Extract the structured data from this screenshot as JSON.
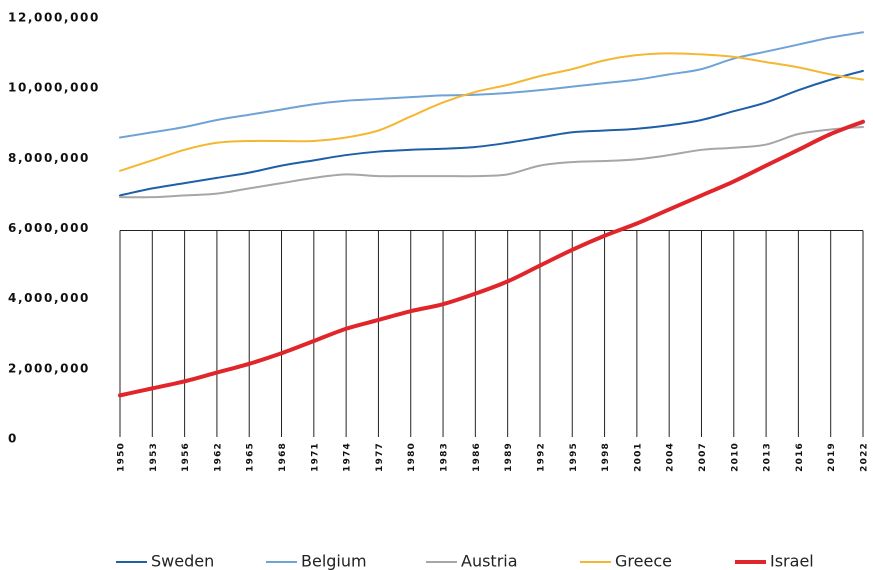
{
  "chart_data": {
    "type": "line",
    "categories": [
      "1950",
      "1953",
      "1956",
      "1962",
      "1965",
      "1968",
      "1971",
      "1974",
      "1977",
      "1980",
      "1983",
      "1986",
      "1989",
      "1992",
      "1995",
      "1998",
      "2001",
      "2004",
      "2007",
      "2010",
      "2013",
      "2016",
      "2019",
      "2022"
    ],
    "ylim": [
      0,
      12000000
    ],
    "yticks": [
      0,
      {
        "value": 2000000,
        "label": "2,000,000"
      },
      {
        "value": 4000000,
        "label": "4,000,000"
      },
      {
        "value": 6000000,
        "label": "6,000,000"
      },
      {
        "value": 8000000,
        "label": "8,000,000"
      },
      {
        "value": 10000000,
        "label": "10,000,000"
      },
      {
        "value": 12000000,
        "label": "12,000,000"
      }
    ],
    "legend": "bottom",
    "series": [
      {
        "name": "Sweden",
        "color": "#1f5fa8",
        "width": 2,
        "values": [
          7000000,
          7200000,
          7350000,
          7500000,
          7650000,
          7850000,
          8000000,
          8150000,
          8250000,
          8300000,
          8330000,
          8380000,
          8500000,
          8650000,
          8800000,
          8850000,
          8900000,
          9000000,
          9150000,
          9400000,
          9650000,
          10000000,
          10300000,
          10550000
        ]
      },
      {
        "name": "Belgium",
        "color": "#6fa3d8",
        "width": 2,
        "values": [
          8650000,
          8800000,
          8950000,
          9150000,
          9300000,
          9450000,
          9600000,
          9700000,
          9750000,
          9800000,
          9850000,
          9870000,
          9920000,
          10000000,
          10100000,
          10200000,
          10300000,
          10450000,
          10600000,
          10900000,
          11100000,
          11300000,
          11500000,
          11650000
        ]
      },
      {
        "name": "Austria",
        "color": "#a6a6a6",
        "width": 2,
        "values": [
          6950000,
          6950000,
          7000000,
          7050000,
          7200000,
          7350000,
          7500000,
          7600000,
          7550000,
          7550000,
          7550000,
          7550000,
          7600000,
          7850000,
          7950000,
          7980000,
          8030000,
          8150000,
          8300000,
          8360000,
          8450000,
          8750000,
          8880000,
          8950000
        ]
      },
      {
        "name": "Greece",
        "color": "#f5b731",
        "width": 2,
        "values": [
          7700000,
          8000000,
          8300000,
          8500000,
          8550000,
          8550000,
          8550000,
          8650000,
          8850000,
          9250000,
          9650000,
          9950000,
          10150000,
          10400000,
          10600000,
          10850000,
          11000000,
          11050000,
          11020000,
          10950000,
          10800000,
          10650000,
          10450000,
          10300000
        ]
      },
      {
        "name": "Israel",
        "color": "#e0262b",
        "width": 4,
        "values": [
          1300000,
          1500000,
          1700000,
          1950000,
          2200000,
          2500000,
          2850000,
          3200000,
          3450000,
          3700000,
          3900000,
          4200000,
          4550000,
          5000000,
          5450000,
          5850000,
          6200000,
          6600000,
          7000000,
          7400000,
          7850000,
          8300000,
          8750000,
          9100000
        ]
      }
    ]
  }
}
